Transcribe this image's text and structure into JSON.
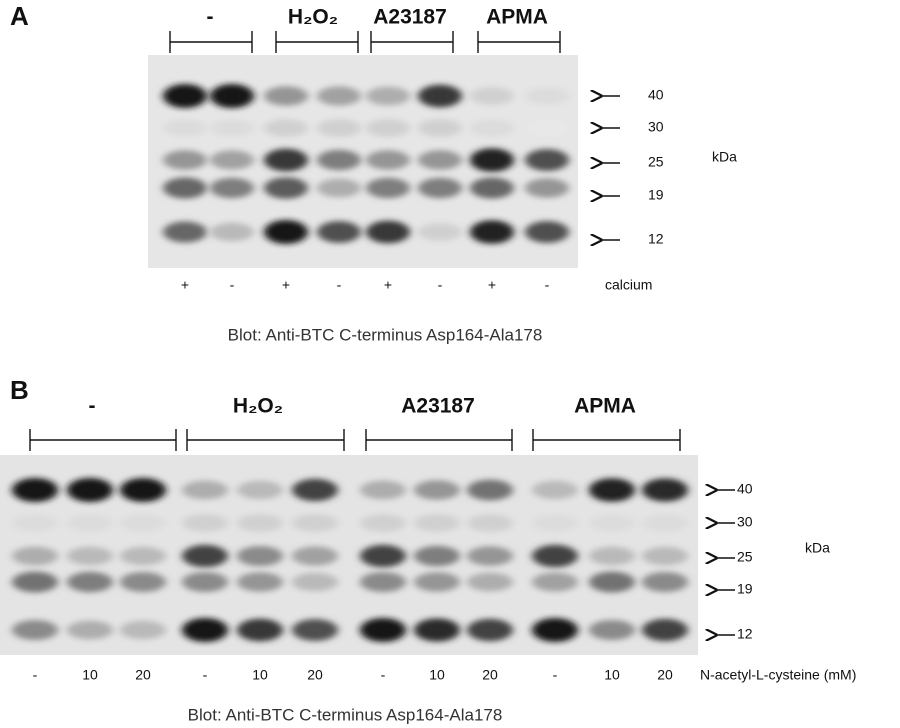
{
  "panels": [
    {
      "label": "A",
      "groups": [
        "-",
        "H₂O₂",
        "A23187",
        "APMA"
      ],
      "markers": [
        "40",
        "30",
        "25",
        "19",
        "12"
      ],
      "unit": "kDa",
      "lanes": [
        "+",
        "-",
        "+",
        "-",
        "+",
        "-",
        "+",
        "-"
      ],
      "lane_title": "calcium",
      "caption": "Blot: Anti-BTC C-terminus Asp164-Ala178"
    },
    {
      "label": "B",
      "groups": [
        "-",
        "H₂O₂",
        "A23187",
        "APMA"
      ],
      "markers": [
        "40",
        "30",
        "25",
        "19",
        "12"
      ],
      "unit": "kDa",
      "lanes": [
        "-",
        "10",
        "20",
        "-",
        "10",
        "20",
        "-",
        "10",
        "20",
        "-",
        "10",
        "20"
      ],
      "lane_title": "N-acetyl-L-cysteine (mM)",
      "caption": "Blot: Anti-BTC C-terminus Asp164-Ala178"
    }
  ]
}
